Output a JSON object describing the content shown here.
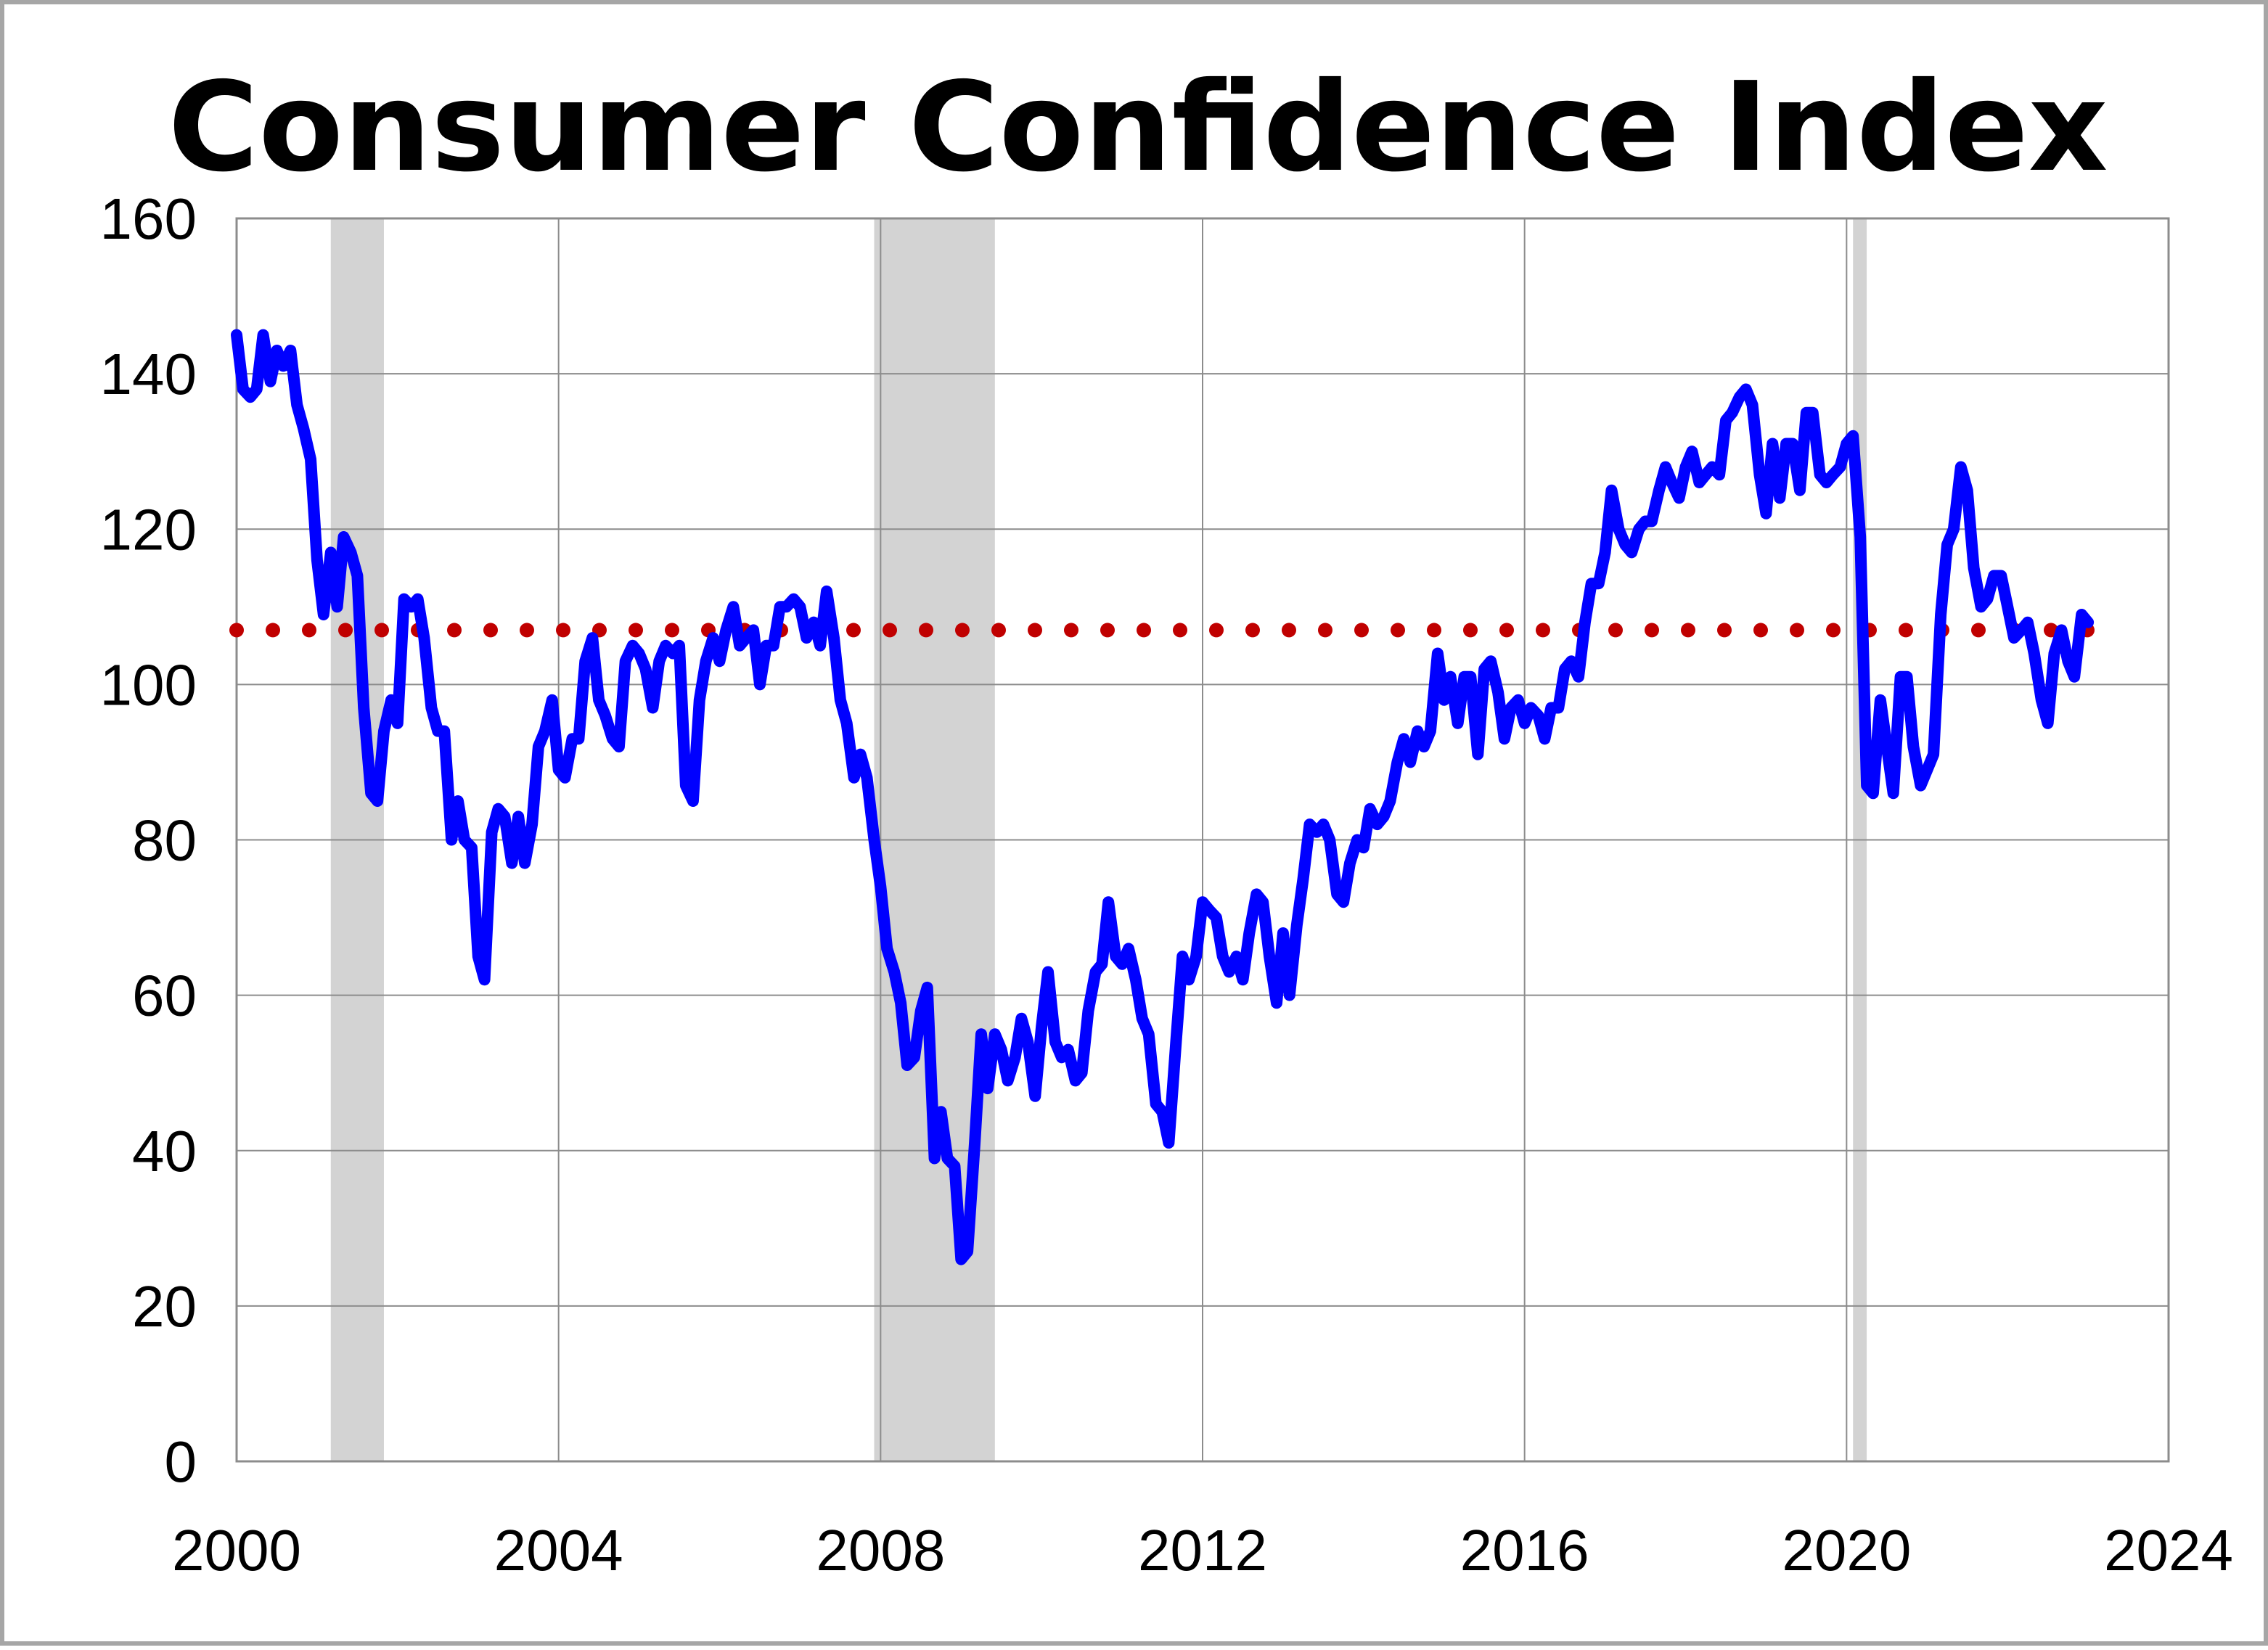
{
  "chart_data": {
    "type": "line",
    "title": "Consumer Confidence Index",
    "xlabel": "",
    "ylabel": "",
    "xlim": [
      2000,
      2024
    ],
    "ylim": [
      0,
      160
    ],
    "x_ticks": [
      "2000",
      "2004",
      "2008",
      "2012",
      "2016",
      "2020",
      "2024"
    ],
    "y_ticks": [
      "0",
      "20",
      "40",
      "60",
      "80",
      "100",
      "120",
      "140",
      "160"
    ],
    "grid": true,
    "legend": "none",
    "recessions": [
      {
        "start": 2001.17,
        "end": 2001.83
      },
      {
        "start": 2007.92,
        "end": 2009.42
      },
      {
        "start": 2020.08,
        "end": 2020.25
      }
    ],
    "reference_line": {
      "value": 107,
      "style": "dotted",
      "color": "#c00000"
    },
    "series": [
      {
        "color": "#0000ff",
        "points": [
          [
            2000.0,
            145
          ],
          [
            2000.08,
            138
          ],
          [
            2000.17,
            137
          ],
          [
            2000.25,
            138
          ],
          [
            2000.33,
            145
          ],
          [
            2000.42,
            139
          ],
          [
            2000.5,
            143
          ],
          [
            2000.58,
            141
          ],
          [
            2000.67,
            143
          ],
          [
            2000.75,
            136
          ],
          [
            2000.83,
            133
          ],
          [
            2000.92,
            129
          ],
          [
            2001.0,
            116
          ],
          [
            2001.08,
            109
          ],
          [
            2001.17,
            117
          ],
          [
            2001.25,
            110
          ],
          [
            2001.33,
            119
          ],
          [
            2001.42,
            117
          ],
          [
            2001.5,
            114
          ],
          [
            2001.58,
            97
          ],
          [
            2001.67,
            86
          ],
          [
            2001.75,
            85
          ],
          [
            2001.83,
            94
          ],
          [
            2001.92,
            98
          ],
          [
            2002.0,
            95
          ],
          [
            2002.08,
            111
          ],
          [
            2002.17,
            110
          ],
          [
            2002.25,
            111
          ],
          [
            2002.33,
            106
          ],
          [
            2002.42,
            97
          ],
          [
            2002.5,
            94
          ],
          [
            2002.58,
            94
          ],
          [
            2002.67,
            80
          ],
          [
            2002.75,
            85
          ],
          [
            2002.83,
            80
          ],
          [
            2002.92,
            79
          ],
          [
            2003.0,
            65
          ],
          [
            2003.08,
            62
          ],
          [
            2003.17,
            81
          ],
          [
            2003.25,
            84
          ],
          [
            2003.33,
            83
          ],
          [
            2003.42,
            77
          ],
          [
            2003.5,
            83
          ],
          [
            2003.58,
            77
          ],
          [
            2003.67,
            82
          ],
          [
            2003.75,
            92
          ],
          [
            2003.83,
            94
          ],
          [
            2003.92,
            98
          ],
          [
            2004.0,
            89
          ],
          [
            2004.08,
            88
          ],
          [
            2004.17,
            93
          ],
          [
            2004.25,
            93
          ],
          [
            2004.33,
            103
          ],
          [
            2004.42,
            106
          ],
          [
            2004.5,
            98
          ],
          [
            2004.58,
            96
          ],
          [
            2004.67,
            93
          ],
          [
            2004.75,
            92
          ],
          [
            2004.83,
            103
          ],
          [
            2004.92,
            105
          ],
          [
            2005.0,
            104
          ],
          [
            2005.08,
            102
          ],
          [
            2005.17,
            97
          ],
          [
            2005.25,
            103
          ],
          [
            2005.33,
            105
          ],
          [
            2005.42,
            104
          ],
          [
            2005.5,
            105
          ],
          [
            2005.58,
            87
          ],
          [
            2005.67,
            85
          ],
          [
            2005.75,
            98
          ],
          [
            2005.83,
            103
          ],
          [
            2005.92,
            106
          ],
          [
            2006.0,
            103
          ],
          [
            2006.08,
            107
          ],
          [
            2006.17,
            110
          ],
          [
            2006.25,
            105
          ],
          [
            2006.33,
            106
          ],
          [
            2006.42,
            107
          ],
          [
            2006.5,
            100
          ],
          [
            2006.58,
            105
          ],
          [
            2006.67,
            105
          ],
          [
            2006.75,
            110
          ],
          [
            2006.83,
            110
          ],
          [
            2006.92,
            111
          ],
          [
            2007.0,
            110
          ],
          [
            2007.08,
            106
          ],
          [
            2007.17,
            108
          ],
          [
            2007.25,
            105
          ],
          [
            2007.33,
            112
          ],
          [
            2007.42,
            106
          ],
          [
            2007.5,
            98
          ],
          [
            2007.58,
            95
          ],
          [
            2007.67,
            88
          ],
          [
            2007.75,
            91
          ],
          [
            2007.83,
            88
          ],
          [
            2007.92,
            80
          ],
          [
            2008.0,
            74
          ],
          [
            2008.08,
            66
          ],
          [
            2008.17,
            63
          ],
          [
            2008.25,
            59
          ],
          [
            2008.33,
            51
          ],
          [
            2008.42,
            52
          ],
          [
            2008.5,
            58
          ],
          [
            2008.58,
            61
          ],
          [
            2008.67,
            39
          ],
          [
            2008.75,
            45
          ],
          [
            2008.83,
            39
          ],
          [
            2008.92,
            38
          ],
          [
            2009.0,
            26
          ],
          [
            2009.08,
            27
          ],
          [
            2009.17,
            41
          ],
          [
            2009.25,
            55
          ],
          [
            2009.33,
            48
          ],
          [
            2009.42,
            55
          ],
          [
            2009.5,
            53
          ],
          [
            2009.58,
            49
          ],
          [
            2009.67,
            52
          ],
          [
            2009.75,
            57
          ],
          [
            2009.83,
            54
          ],
          [
            2009.92,
            47
          ],
          [
            2010.0,
            56
          ],
          [
            2010.08,
            63
          ],
          [
            2010.17,
            54
          ],
          [
            2010.25,
            52
          ],
          [
            2010.33,
            53
          ],
          [
            2010.42,
            49
          ],
          [
            2010.5,
            50
          ],
          [
            2010.58,
            58
          ],
          [
            2010.67,
            63
          ],
          [
            2010.75,
            64
          ],
          [
            2010.83,
            72
          ],
          [
            2010.92,
            65
          ],
          [
            2011.0,
            64
          ],
          [
            2011.08,
            66
          ],
          [
            2011.17,
            62
          ],
          [
            2011.25,
            57
          ],
          [
            2011.33,
            55
          ],
          [
            2011.42,
            46
          ],
          [
            2011.5,
            45
          ],
          [
            2011.58,
            41
          ],
          [
            2011.67,
            54
          ],
          [
            2011.75,
            65
          ],
          [
            2011.83,
            62
          ],
          [
            2011.92,
            65
          ],
          [
            2012.0,
            72
          ],
          [
            2012.08,
            71
          ],
          [
            2012.17,
            70
          ],
          [
            2012.25,
            65
          ],
          [
            2012.33,
            63
          ],
          [
            2012.42,
            65
          ],
          [
            2012.5,
            62
          ],
          [
            2012.58,
            68
          ],
          [
            2012.67,
            73
          ],
          [
            2012.75,
            72
          ],
          [
            2012.83,
            65
          ],
          [
            2012.92,
            59
          ],
          [
            2013.0,
            68
          ],
          [
            2013.08,
            60
          ],
          [
            2013.17,
            69
          ],
          [
            2013.25,
            75
          ],
          [
            2013.33,
            82
          ],
          [
            2013.42,
            81
          ],
          [
            2013.5,
            82
          ],
          [
            2013.58,
            80
          ],
          [
            2013.67,
            73
          ],
          [
            2013.75,
            72
          ],
          [
            2013.83,
            77
          ],
          [
            2013.92,
            80
          ],
          [
            2014.0,
            79
          ],
          [
            2014.08,
            84
          ],
          [
            2014.17,
            82
          ],
          [
            2014.25,
            83
          ],
          [
            2014.33,
            85
          ],
          [
            2014.42,
            90
          ],
          [
            2014.5,
            93
          ],
          [
            2014.58,
            90
          ],
          [
            2014.67,
            94
          ],
          [
            2014.75,
            92
          ],
          [
            2014.83,
            94
          ],
          [
            2014.92,
            104
          ],
          [
            2015.0,
            98
          ],
          [
            2015.08,
            101
          ],
          [
            2015.17,
            95
          ],
          [
            2015.25,
            101
          ],
          [
            2015.33,
            101
          ],
          [
            2015.42,
            91
          ],
          [
            2015.5,
            102
          ],
          [
            2015.58,
            103
          ],
          [
            2015.67,
            99
          ],
          [
            2015.75,
            93
          ],
          [
            2015.83,
            97
          ],
          [
            2015.92,
            98
          ],
          [
            2016.0,
            95
          ],
          [
            2016.08,
            97
          ],
          [
            2016.17,
            96
          ],
          [
            2016.25,
            93
          ],
          [
            2016.33,
            97
          ],
          [
            2016.42,
            97
          ],
          [
            2016.5,
            102
          ],
          [
            2016.58,
            103
          ],
          [
            2016.67,
            101
          ],
          [
            2016.75,
            108
          ],
          [
            2016.83,
            113
          ],
          [
            2016.92,
            113
          ],
          [
            2017.0,
            117
          ],
          [
            2017.08,
            125
          ],
          [
            2017.17,
            120
          ],
          [
            2017.25,
            118
          ],
          [
            2017.33,
            117
          ],
          [
            2017.42,
            120
          ],
          [
            2017.5,
            121
          ],
          [
            2017.58,
            121
          ],
          [
            2017.67,
            125
          ],
          [
            2017.75,
            128
          ],
          [
            2017.83,
            126
          ],
          [
            2017.92,
            124
          ],
          [
            2018.0,
            128
          ],
          [
            2018.08,
            130
          ],
          [
            2018.17,
            126
          ],
          [
            2018.25,
            127
          ],
          [
            2018.33,
            128
          ],
          [
            2018.42,
            127
          ],
          [
            2018.5,
            134
          ],
          [
            2018.58,
            135
          ],
          [
            2018.67,
            137
          ],
          [
            2018.75,
            138
          ],
          [
            2018.83,
            136
          ],
          [
            2018.92,
            127
          ],
          [
            2019.0,
            122
          ],
          [
            2019.08,
            131
          ],
          [
            2019.17,
            124
          ],
          [
            2019.25,
            131
          ],
          [
            2019.33,
            131
          ],
          [
            2019.42,
            125
          ],
          [
            2019.5,
            135
          ],
          [
            2019.58,
            135
          ],
          [
            2019.67,
            127
          ],
          [
            2019.75,
            126
          ],
          [
            2019.83,
            127
          ],
          [
            2019.92,
            128
          ],
          [
            2020.0,
            131
          ],
          [
            2020.08,
            132
          ],
          [
            2020.17,
            119
          ],
          [
            2020.25,
            87
          ],
          [
            2020.33,
            86
          ],
          [
            2020.42,
            98
          ],
          [
            2020.5,
            92
          ],
          [
            2020.58,
            86
          ],
          [
            2020.67,
            101
          ],
          [
            2020.75,
            101
          ],
          [
            2020.83,
            92
          ],
          [
            2020.92,
            87
          ],
          [
            2021.0,
            89
          ],
          [
            2021.08,
            91
          ],
          [
            2021.17,
            109
          ],
          [
            2021.25,
            118
          ],
          [
            2021.33,
            120
          ],
          [
            2021.42,
            128
          ],
          [
            2021.5,
            125
          ],
          [
            2021.58,
            115
          ],
          [
            2021.67,
            110
          ],
          [
            2021.75,
            111
          ],
          [
            2021.83,
            114
          ],
          [
            2021.92,
            114
          ],
          [
            2022.0,
            110
          ],
          [
            2022.08,
            106
          ],
          [
            2022.17,
            107
          ],
          [
            2022.25,
            108
          ],
          [
            2022.33,
            104
          ],
          [
            2022.42,
            98
          ],
          [
            2022.5,
            95
          ],
          [
            2022.58,
            104
          ],
          [
            2022.67,
            107
          ],
          [
            2022.75,
            103
          ],
          [
            2022.83,
            101
          ],
          [
            2022.92,
            109
          ],
          [
            2023.0,
            108
          ]
        ]
      }
    ]
  }
}
